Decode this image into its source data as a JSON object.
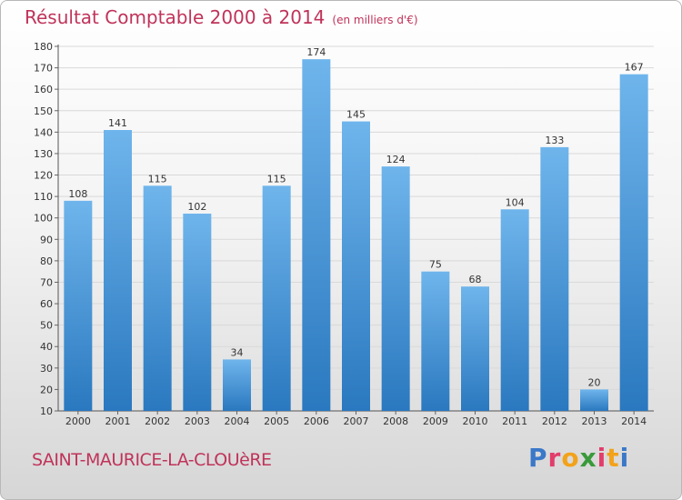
{
  "title": "Résultat Comptable 2000 à 2014",
  "unit": "(en milliers d'€)",
  "town": "SAINT-MAURICE-LA-CLOUèRE",
  "logo": {
    "letters": [
      "P",
      "r",
      "o",
      "x",
      "i",
      "t",
      "i"
    ],
    "colors": [
      "#3a78c8",
      "#e23d6b",
      "#f2a21b",
      "#3a9a3a",
      "#e23d6b",
      "#f2a21b",
      "#3a78c8"
    ]
  },
  "colors": {
    "bar_top": "#6fb5ec",
    "bar_bottom": "#2a78bf",
    "title": "#c0335a",
    "grid": "#d9d9d9"
  },
  "chart_data": {
    "type": "bar",
    "title": "Résultat Comptable 2000 à 2014",
    "xlabel": "",
    "ylabel": "",
    "ylim": [
      10,
      180
    ],
    "yticks": [
      10,
      20,
      30,
      40,
      50,
      60,
      70,
      80,
      90,
      100,
      110,
      120,
      130,
      140,
      150,
      160,
      170,
      180
    ],
    "categories": [
      "2000",
      "2001",
      "2002",
      "2003",
      "2004",
      "2005",
      "2006",
      "2007",
      "2008",
      "2009",
      "2010",
      "2011",
      "2012",
      "2013",
      "2014"
    ],
    "values": [
      108,
      141,
      115,
      102,
      34,
      115,
      174,
      145,
      124,
      75,
      68,
      104,
      133,
      20,
      167
    ],
    "grid": true
  }
}
